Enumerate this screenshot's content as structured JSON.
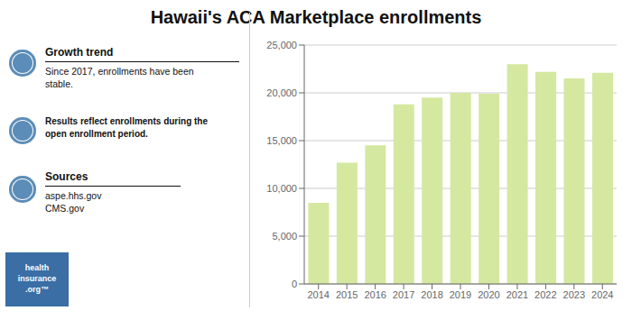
{
  "chart_data": {
    "type": "bar",
    "title": "Hawaii's ACA Marketplace enrollments",
    "categories": [
      "2014",
      "2015",
      "2016",
      "2017",
      "2018",
      "2019",
      "2020",
      "2021",
      "2022",
      "2023",
      "2024"
    ],
    "values": [
      8500,
      12700,
      14500,
      18800,
      19500,
      20000,
      19900,
      23000,
      22200,
      21500,
      22100
    ],
    "color": "#d4e8a0",
    "ylim": [
      0,
      25000
    ],
    "yticks": [
      0,
      {
        "value": 5000,
        "label": "5,000"
      },
      {
        "value": 10000,
        "label": "10,000"
      },
      {
        "value": 15000,
        "label": "15,000"
      },
      {
        "value": 20000,
        "label": "20,000"
      },
      {
        "value": 25000,
        "label": "25,000"
      }
    ],
    "grid": true,
    "annotations": [
      "Growth trend",
      "Since 2017, enrollments have been\nstable.",
      "Results reflect enrollments during the\nopen enrollment period.",
      "Sources",
      "aspe.hhs.gov\nCMS.gov",
      "health\ninsurance\n.org™"
    ]
  }
}
